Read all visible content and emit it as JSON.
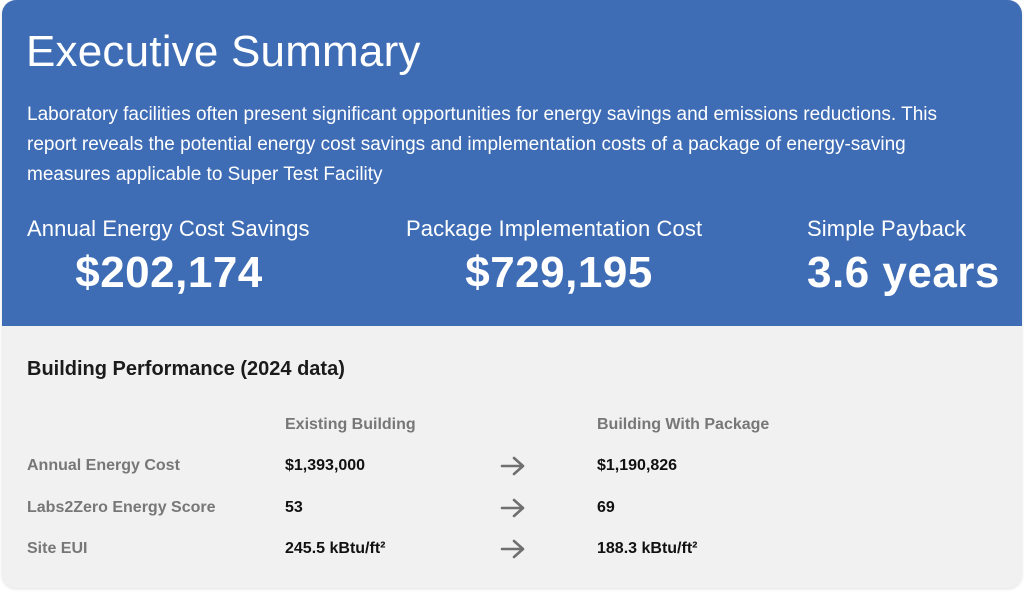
{
  "summary": {
    "title": "Executive Summary",
    "intro": "Laboratory facilities often present significant opportunities for energy savings and emissions reductions. This report reveals the potential energy cost savings and implementation costs of a package of energy-saving measures applicable to Super Test Facility",
    "metrics": [
      {
        "label": "Annual Energy Cost Savings",
        "value": "$202,174"
      },
      {
        "label": "Package Implementation Cost",
        "value": "$729,195"
      },
      {
        "label": "Simple Payback",
        "value": "3.6 years"
      }
    ],
    "background_color": "#3f6db5"
  },
  "performance": {
    "title": "Building Performance (2024 data)",
    "columns": {
      "existing": "Existing Building",
      "package": "Building With Package"
    },
    "rows": [
      {
        "label": "Annual Energy Cost",
        "existing": "$1,393,000",
        "package": "$1,190,826"
      },
      {
        "label": "Labs2Zero Energy Score",
        "existing": "53",
        "package": "69"
      },
      {
        "label": "Site EUI",
        "existing": "245.5 kBtu/ft²",
        "package": "188.3 kBtu/ft²"
      }
    ],
    "arrow_icon": "arrow-right-icon",
    "background_color": "#f1f1f1"
  }
}
